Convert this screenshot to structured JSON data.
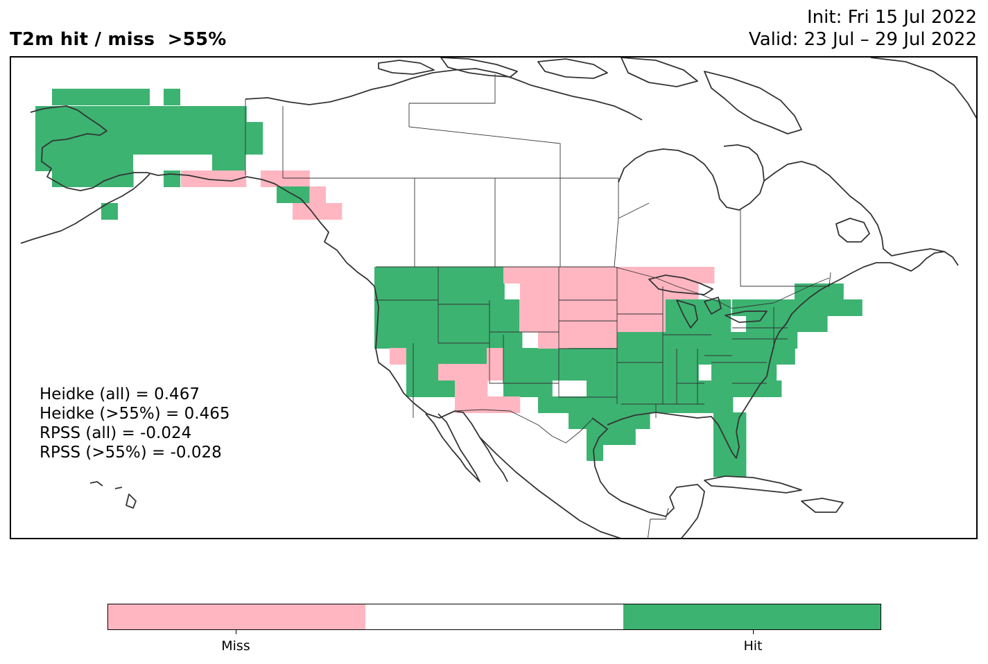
{
  "title": "T2m hit / miss  >55%",
  "init": "Init: Fri 15 Jul 2022",
  "valid": "Valid: 23 Jul – 29 Jul 2022",
  "scores": [
    "Heidke (all) = 0.467",
    "Heidke (>55%) = 0.465",
    "RPSS (all) = -0.024",
    "RPSS (>55%) = -0.028"
  ],
  "colors": {
    "hit": "#3cb371",
    "miss": "#ffb6c1",
    "neutral": "#ffffff",
    "coast": "#333333"
  },
  "legend": {
    "categories": [
      "Miss",
      "",
      "Hit"
    ],
    "labels": {
      "miss": "Miss",
      "hit": "Hit"
    }
  }
}
